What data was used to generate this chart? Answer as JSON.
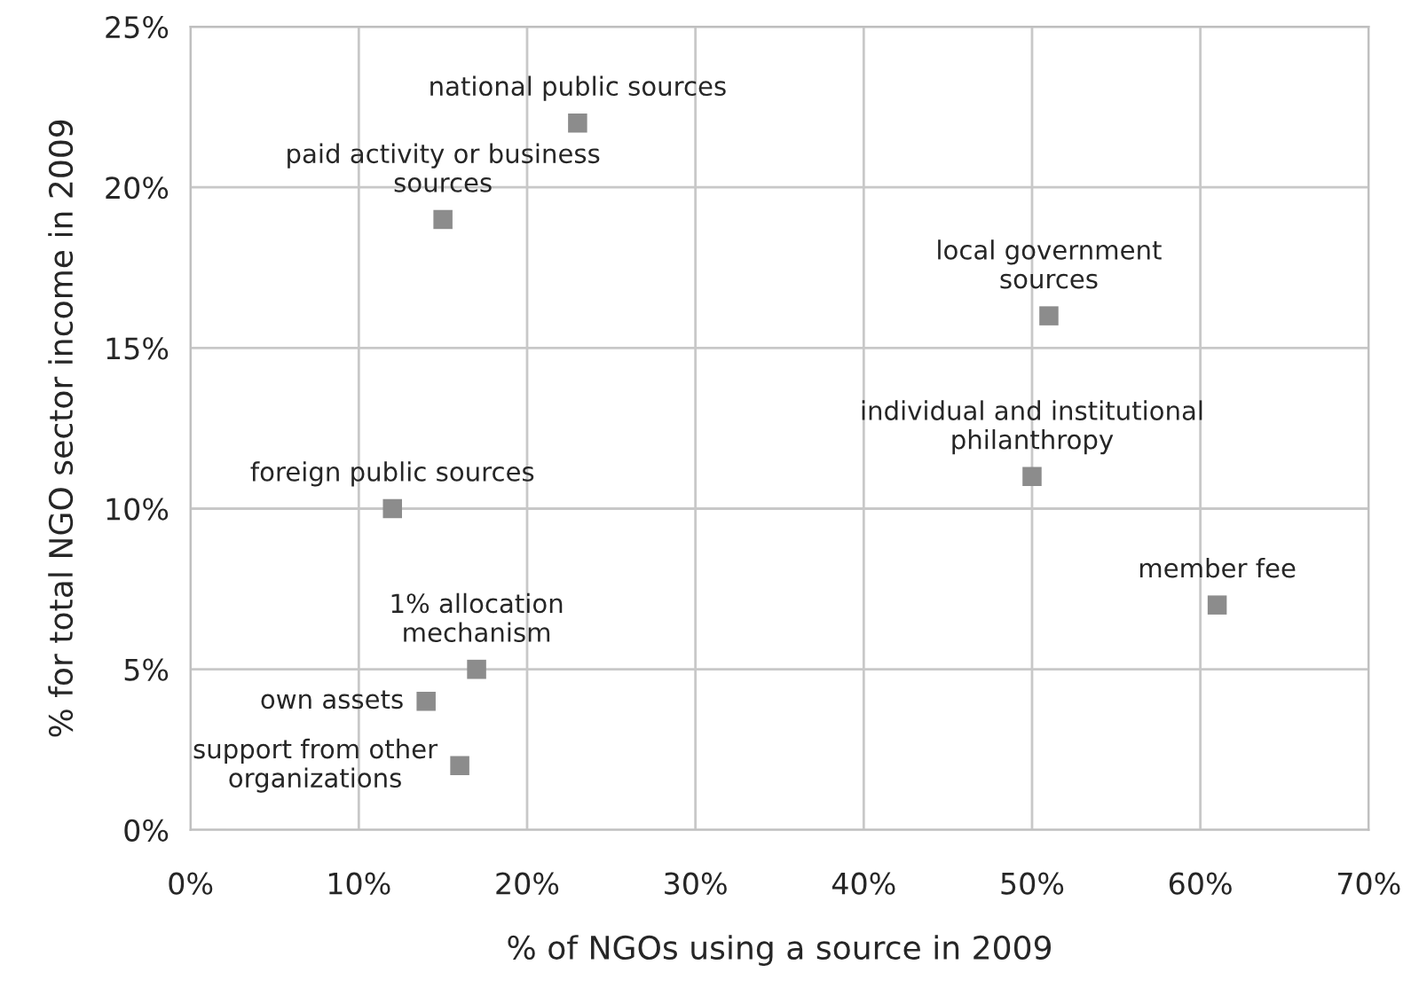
{
  "chart_data": {
    "type": "scatter",
    "xlabel": "% of NGOs using a source in 2009",
    "ylabel": "% for total NGO sector income in 2009",
    "series": [
      {
        "color": "#8c8c8c",
        "x": [
          23,
          15,
          51,
          50,
          12,
          61,
          17,
          14,
          16
        ],
        "values": [
          22,
          19,
          16,
          11,
          10,
          7,
          5,
          4,
          2
        ]
      }
    ],
    "marker": "square",
    "annotations": [
      {
        "text": "national public sources",
        "x": 23,
        "y": 22
      },
      {
        "text": "paid activity or business\nsources",
        "x": 15,
        "y": 19
      },
      {
        "text": "local government\nsources",
        "x": 51,
        "y": 16
      },
      {
        "text": "individual and institutional\nphilanthropy",
        "x": 50,
        "y": 11
      },
      {
        "text": "foreign public sources",
        "x": 12,
        "y": 10
      },
      {
        "text": "member fee",
        "x": 61,
        "y": 7
      },
      {
        "text": "1% allocation\nmechanism",
        "x": 17,
        "y": 5
      },
      {
        "text": "own assets",
        "x": 14,
        "y": 4
      },
      {
        "text": "support from other\norganizations",
        "x": 16,
        "y": 2
      }
    ],
    "xlim": [
      0,
      70
    ],
    "ylim": [
      0,
      25
    ],
    "xticks": [
      {
        "value": 0,
        "label": "0%"
      },
      {
        "value": 10,
        "label": "10%"
      },
      {
        "value": 20,
        "label": "20%"
      },
      {
        "value": 30,
        "label": "30%"
      },
      {
        "value": 40,
        "label": "40%"
      },
      {
        "value": 50,
        "label": "50%"
      },
      {
        "value": 60,
        "label": "60%"
      },
      {
        "value": 70,
        "label": "70%"
      }
    ],
    "yticks": [
      {
        "value": 0,
        "label": "0%"
      },
      {
        "value": 5,
        "label": "5%"
      },
      {
        "value": 10,
        "label": "10%"
      },
      {
        "value": 15,
        "label": "15%"
      },
      {
        "value": 20,
        "label": "20%"
      },
      {
        "value": 25,
        "label": "25%"
      }
    ],
    "grid": true
  }
}
